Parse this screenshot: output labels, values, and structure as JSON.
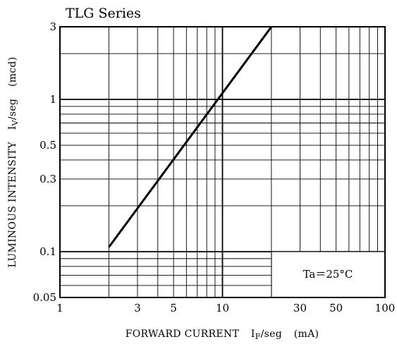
{
  "chart_data": {
    "type": "line",
    "title": "TLG Series",
    "xaxis": {
      "scale": "log",
      "range": [
        1,
        100
      ],
      "unit": "mA",
      "label_parts": {
        "main": "FORWARD CURRENT",
        "sym": "I",
        "sub": "F",
        "rest": "/seg",
        "unit": "(mA)"
      },
      "ticks": [
        {
          "value": 1,
          "label": "1"
        },
        {
          "value": 3,
          "label": "3"
        },
        {
          "value": 5,
          "label": "5"
        },
        {
          "value": 10,
          "label": "10"
        },
        {
          "value": 30,
          "label": "30"
        },
        {
          "value": 50,
          "label": "50"
        },
        {
          "value": 100,
          "label": "100"
        }
      ]
    },
    "yaxis": {
      "scale": "log",
      "range": [
        0.05,
        3
      ],
      "unit": "mcd",
      "label_parts": {
        "main": "LUMINOUS INTENSITY",
        "sym": "I",
        "sub": "V",
        "rest": "/seg",
        "unit": "(mcd)"
      },
      "ticks": [
        {
          "value": 0.05,
          "label": "0.05"
        },
        {
          "value": 0.1,
          "label": "0.1"
        },
        {
          "value": 0.3,
          "label": "0.3"
        },
        {
          "value": 0.5,
          "label": "0.5"
        },
        {
          "value": 1,
          "label": "1"
        },
        {
          "value": 3,
          "label": "3"
        }
      ]
    },
    "grid": true,
    "series": [
      {
        "name": "",
        "color": "#000000",
        "x": [
          2,
          20
        ],
        "y": [
          0.107,
          3
        ]
      }
    ],
    "annotation": "Ta＝25°C",
    "annotation_placement": "bottom-right"
  }
}
